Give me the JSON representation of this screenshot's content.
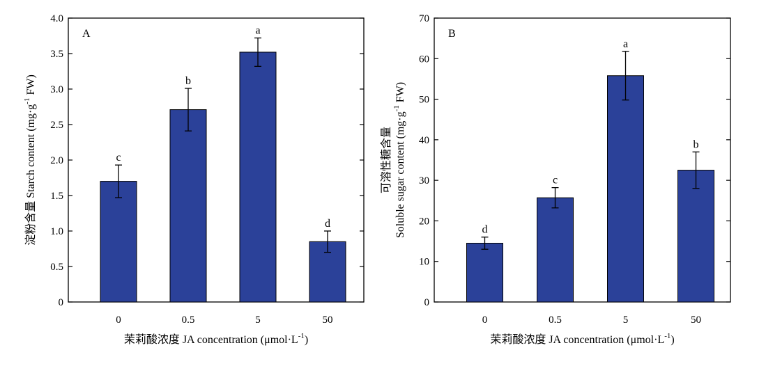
{
  "colors": {
    "bar": "#2b4199",
    "axis": "#000000"
  },
  "chart_data": [
    {
      "type": "bar",
      "panel_label": "A",
      "categories": [
        "0",
        "0.5",
        "5",
        "50"
      ],
      "values": [
        1.7,
        2.71,
        3.52,
        0.85
      ],
      "errors": [
        0.23,
        0.3,
        0.2,
        0.15
      ],
      "significance": [
        "c",
        "b",
        "a",
        "d"
      ],
      "xlabel": "茉莉酸浓度 JA concentration (μmol·L",
      "xlabel_sup": "-1",
      "xlabel_end": ")",
      "ylabel": "淀粉含量 Starch content (mg·g",
      "ylabel_sup": "-1",
      "ylabel_end": " FW)",
      "ylim": [
        0,
        4.0
      ],
      "yticks": [
        "0",
        "0.5",
        "1.0",
        "1.5",
        "2.0",
        "2.5",
        "3.0",
        "3.5",
        "4.0"
      ]
    },
    {
      "type": "bar",
      "panel_label": "B",
      "categories": [
        "0",
        "0.5",
        "5",
        "50"
      ],
      "values": [
        14.5,
        25.7,
        55.8,
        32.5
      ],
      "errors": [
        1.5,
        2.5,
        6.0,
        4.5
      ],
      "significance": [
        "d",
        "c",
        "a",
        "b"
      ],
      "xlabel": "茉莉酸浓度 JA concentration (μmol·L",
      "xlabel_sup": "-1",
      "xlabel_end": ")",
      "ylabel_line1": "可溶性糖含量",
      "ylabel_line2": "Soluble sugar content (mg·g",
      "ylabel_sup": "-1",
      "ylabel_end": " FW)",
      "ylim": [
        0,
        70
      ],
      "yticks": [
        "0",
        "10",
        "20",
        "30",
        "40",
        "50",
        "60",
        "70"
      ]
    }
  ]
}
